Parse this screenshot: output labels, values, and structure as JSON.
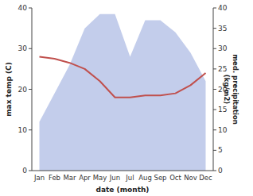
{
  "chart_data": {
    "type": "line",
    "x_label": "date (month)",
    "y_label": "max temp (C)",
    "y2_label": "med. precipitation\n(kg/m2)",
    "categories": [
      "Jan",
      "Feb",
      "Mar",
      "Apr",
      "May",
      "Jun",
      "Jul",
      "Aug",
      "Sep",
      "Oct",
      "Nov",
      "Dec"
    ],
    "series": [
      {
        "type": "area",
        "axis": "y2",
        "color": "#b8c4e8",
        "values": [
          12,
          19,
          26,
          35,
          38.5,
          38.5,
          28,
          37,
          37,
          34,
          29,
          22
        ]
      },
      {
        "type": "line",
        "axis": "y",
        "color": "#c0504d",
        "values": [
          28,
          27.5,
          26.5,
          25,
          22,
          18,
          18,
          18.5,
          18.5,
          19,
          21,
          24
        ]
      }
    ],
    "ylim": [
      0,
      40
    ],
    "yticks": [
      0,
      10,
      20,
      30,
      40
    ],
    "y2lim": [
      0,
      40
    ],
    "y2ticks": [
      0,
      5,
      10,
      15,
      20,
      25,
      30,
      35,
      40
    ],
    "grid": false
  }
}
